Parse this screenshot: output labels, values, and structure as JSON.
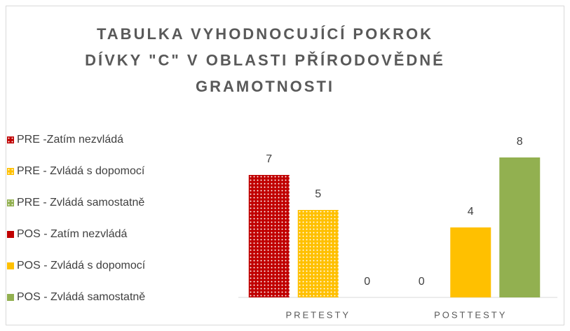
{
  "chart_data": {
    "type": "bar",
    "title": [
      "TABULKA VYHODNOCUJÍCÍ POKROK",
      "DÍVKY \"C\" V OBLASTI PŘÍRODOVĚDNÉ",
      "GRAMOTNOSTI"
    ],
    "categories": [
      "PRETESTY",
      "POSTTESTY"
    ],
    "series": [
      {
        "name": "PRE -Zatím nezvládá",
        "color": "#c00000",
        "pattern": "dots",
        "values": [
          7,
          null
        ]
      },
      {
        "name": "PRE - Zvládá s dopomocí",
        "color": "#ffc000",
        "pattern": "dots",
        "values": [
          5,
          null
        ]
      },
      {
        "name": "PRE - Zvládá samostatně",
        "color": "#92b050",
        "pattern": "dots",
        "values": [
          0,
          null
        ]
      },
      {
        "name": "POS - Zatím nezvládá",
        "color": "#c00000",
        "values": [
          null,
          0
        ]
      },
      {
        "name": "POS - Zvládá s dopomocí",
        "color": "#ffc000",
        "values": [
          null,
          4
        ]
      },
      {
        "name": "POS - Zvládá samostatně",
        "color": "#92b050",
        "values": [
          null,
          8
        ]
      }
    ],
    "ylim": [
      0,
      9
    ],
    "legend": "left"
  }
}
